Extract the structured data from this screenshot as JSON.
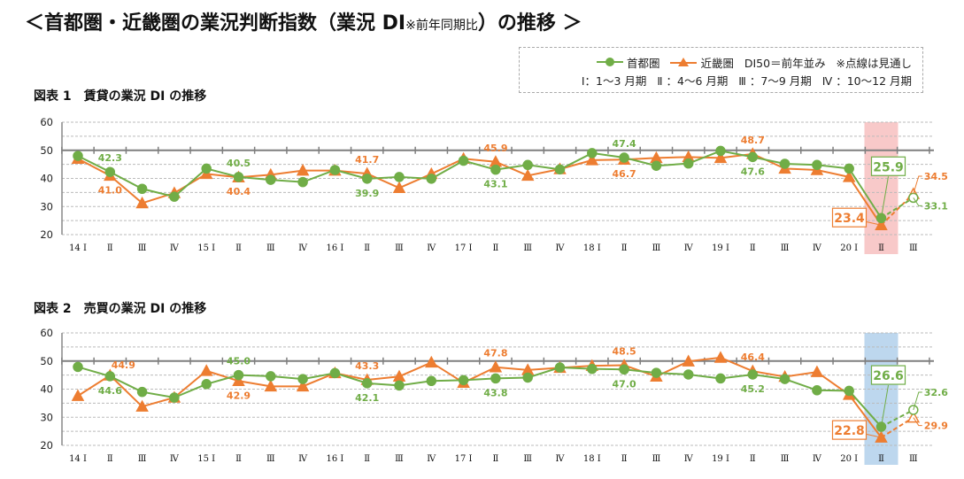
{
  "title": {
    "main": "＜首都圏・近畿圏の業況判断指数（業況 DI",
    "note": "※前年同期比",
    "tail": "）の推移 ＞"
  },
  "legend": {
    "series1": "首都圏",
    "series2": "近畿圏",
    "baseline_note": "DI50＝前年並み",
    "dashed_note": "※点線は見通し",
    "quarters": [
      "Ⅰ：1～3 月期",
      "Ⅱ ：4～6 月期",
      "Ⅲ ：7～9 月期",
      "Ⅳ ：10～12 月期"
    ]
  },
  "colors": {
    "series1": "#70ad47",
    "series2": "#ed7d31",
    "highlight1": "#f8c9c9",
    "highlight2": "#bdd7ee",
    "grid": "#bbbbbb",
    "baseline": "#7f7f7f"
  },
  "chart_data": [
    {
      "type": "line",
      "title": "図表 1　賃貸の業況 DI の推移",
      "categories": [
        "14 Ⅰ",
        "Ⅱ",
        "Ⅲ",
        "Ⅳ",
        "15 Ⅰ",
        "Ⅱ",
        "Ⅲ",
        "Ⅳ",
        "16 Ⅰ",
        "Ⅱ",
        "Ⅲ",
        "Ⅳ",
        "17 Ⅰ",
        "Ⅱ",
        "Ⅲ",
        "Ⅳ",
        "18 Ⅰ",
        "Ⅱ",
        "Ⅲ",
        "Ⅳ",
        "19 Ⅰ",
        "Ⅱ",
        "Ⅲ",
        "Ⅳ",
        "20 Ⅰ",
        "Ⅱ",
        "Ⅲ"
      ],
      "ylim": [
        20,
        60
      ],
      "yticks": [
        20,
        30,
        40,
        50,
        60
      ],
      "baseline": 50,
      "grid": true,
      "highlight_category": "20 Ⅱ",
      "forecast_from_index": 25,
      "series": [
        {
          "name": "首都圏",
          "marker": "circle",
          "values": [
            48.0,
            42.3,
            36.3,
            33.5,
            43.5,
            40.5,
            39.5,
            38.7,
            43.0,
            39.9,
            40.5,
            39.9,
            46.3,
            43.1,
            44.8,
            43.2,
            49.0,
            47.4,
            44.5,
            45.3,
            49.8,
            47.6,
            45.2,
            44.8,
            43.5,
            25.9,
            33.1
          ]
        },
        {
          "name": "近畿圏",
          "marker": "triangle",
          "values": [
            47.0,
            41.0,
            31.2,
            34.8,
            41.6,
            40.4,
            41.3,
            42.8,
            42.8,
            41.7,
            36.6,
            41.6,
            47.0,
            45.9,
            41.0,
            43.3,
            46.5,
            46.7,
            47.3,
            47.6,
            47.3,
            48.7,
            43.5,
            43.0,
            40.5,
            23.4,
            34.5
          ]
        }
      ],
      "annotations": [
        {
          "series": 0,
          "index": 1,
          "text": "42.3",
          "pos": "above"
        },
        {
          "series": 1,
          "index": 1,
          "text": "41.0",
          "pos": "below"
        },
        {
          "series": 0,
          "index": 5,
          "text": "40.5",
          "pos": "above"
        },
        {
          "series": 1,
          "index": 5,
          "text": "40.4",
          "pos": "below"
        },
        {
          "series": 1,
          "index": 9,
          "text": "41.7",
          "pos": "above"
        },
        {
          "series": 0,
          "index": 9,
          "text": "39.9",
          "pos": "below"
        },
        {
          "series": 1,
          "index": 13,
          "text": "45.9",
          "pos": "above"
        },
        {
          "series": 0,
          "index": 13,
          "text": "43.1",
          "pos": "below"
        },
        {
          "series": 0,
          "index": 17,
          "text": "47.4",
          "pos": "above"
        },
        {
          "series": 1,
          "index": 17,
          "text": "46.7",
          "pos": "below"
        },
        {
          "series": 1,
          "index": 21,
          "text": "48.7",
          "pos": "above"
        },
        {
          "series": 0,
          "index": 21,
          "text": "47.6",
          "pos": "below"
        },
        {
          "series": 0,
          "index": 25,
          "text": "25.9",
          "pos": "box-above"
        },
        {
          "series": 1,
          "index": 25,
          "text": "23.4",
          "pos": "box-left"
        },
        {
          "series": 1,
          "index": 26,
          "text": "34.5",
          "pos": "right-up"
        },
        {
          "series": 0,
          "index": 26,
          "text": "33.1",
          "pos": "right-down"
        }
      ]
    },
    {
      "type": "line",
      "title": "図表 2　売買の業況 DI の推移",
      "categories": [
        "14 Ⅰ",
        "Ⅱ",
        "Ⅲ",
        "Ⅳ",
        "15 Ⅰ",
        "Ⅱ",
        "Ⅲ",
        "Ⅳ",
        "16 Ⅰ",
        "Ⅱ",
        "Ⅲ",
        "Ⅳ",
        "17 Ⅰ",
        "Ⅱ",
        "Ⅲ",
        "Ⅳ",
        "18 Ⅰ",
        "Ⅱ",
        "Ⅲ",
        "Ⅳ",
        "19 Ⅰ",
        "Ⅱ",
        "Ⅲ",
        "Ⅳ",
        "20 Ⅰ",
        "Ⅱ",
        "Ⅲ"
      ],
      "ylim": [
        20,
        60
      ],
      "yticks": [
        20,
        30,
        40,
        50,
        60
      ],
      "baseline": 50,
      "grid": true,
      "highlight_category": "20 Ⅱ",
      "forecast_from_index": 25,
      "series": [
        {
          "name": "首都圏",
          "marker": "circle",
          "values": [
            47.9,
            44.6,
            39.0,
            37.0,
            41.8,
            45.0,
            44.6,
            43.6,
            45.7,
            42.1,
            41.3,
            42.9,
            43.2,
            43.8,
            44.1,
            47.7,
            47.2,
            47.0,
            45.8,
            45.2,
            43.8,
            45.2,
            43.6,
            39.6,
            39.4,
            26.6,
            32.6
          ]
        },
        {
          "name": "近畿圏",
          "marker": "triangle",
          "values": [
            37.6,
            44.9,
            33.8,
            37.0,
            46.5,
            42.9,
            41.0,
            41.0,
            45.7,
            43.3,
            44.5,
            49.5,
            42.3,
            47.8,
            46.8,
            47.6,
            48.3,
            48.5,
            44.5,
            49.9,
            51.2,
            46.4,
            44.4,
            46.1,
            38.0,
            22.8,
            29.9
          ]
        }
      ],
      "annotations": [
        {
          "series": 1,
          "index": 1,
          "text": "44.9",
          "pos": "above-right"
        },
        {
          "series": 0,
          "index": 1,
          "text": "44.6",
          "pos": "below"
        },
        {
          "series": 0,
          "index": 5,
          "text": "45.0",
          "pos": "above"
        },
        {
          "series": 1,
          "index": 5,
          "text": "42.9",
          "pos": "below"
        },
        {
          "series": 1,
          "index": 9,
          "text": "43.3",
          "pos": "above"
        },
        {
          "series": 0,
          "index": 9,
          "text": "42.1",
          "pos": "below"
        },
        {
          "series": 1,
          "index": 13,
          "text": "47.8",
          "pos": "above"
        },
        {
          "series": 0,
          "index": 13,
          "text": "43.8",
          "pos": "below"
        },
        {
          "series": 1,
          "index": 17,
          "text": "48.5",
          "pos": "above"
        },
        {
          "series": 0,
          "index": 17,
          "text": "47.0",
          "pos": "below"
        },
        {
          "series": 1,
          "index": 21,
          "text": "46.4",
          "pos": "above"
        },
        {
          "series": 0,
          "index": 21,
          "text": "45.2",
          "pos": "below"
        },
        {
          "series": 0,
          "index": 25,
          "text": "26.6",
          "pos": "box-above"
        },
        {
          "series": 1,
          "index": 25,
          "text": "22.8",
          "pos": "box-left"
        },
        {
          "series": 0,
          "index": 26,
          "text": "32.6",
          "pos": "right-up"
        },
        {
          "series": 1,
          "index": 26,
          "text": "29.9",
          "pos": "right-down"
        }
      ]
    }
  ]
}
